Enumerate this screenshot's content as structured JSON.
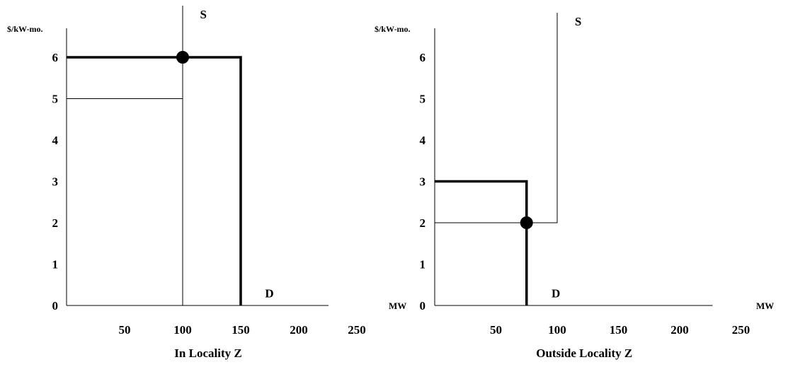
{
  "chart_data": [
    {
      "type": "line",
      "title": "In Locality Z",
      "ylabel": "$/kW-mo.",
      "xlabel": "",
      "x_ticks": [
        50,
        100,
        150,
        200,
        250
      ],
      "y_ticks": [
        0,
        1,
        2,
        3,
        4,
        5,
        6
      ],
      "xlim": [
        0,
        250
      ],
      "ylim": [
        0,
        6
      ],
      "grid": false,
      "series": [
        {
          "name": "S",
          "points": [
            [
              100,
              0
            ],
            [
              100,
              7
            ]
          ],
          "line": "thin",
          "label_at": [
            104,
            6.8
          ]
        },
        {
          "name": "D",
          "points": [
            [
              0,
              6
            ],
            [
              150,
              6
            ],
            [
              150,
              0
            ]
          ],
          "line": "thick",
          "label_at": [
            160,
            0.2
          ]
        },
        {
          "name": "",
          "points": [
            [
              0,
              5
            ],
            [
              100,
              5
            ]
          ],
          "line": "thin"
        },
        {
          "name": "",
          "points": [
            [
              100,
              0
            ],
            [
              100,
              5
            ]
          ],
          "line": "dashed"
        }
      ],
      "markers": [
        [
          100,
          6
        ]
      ]
    },
    {
      "type": "line",
      "title": "Outside Locality Z",
      "ylabel": "$/kW-mo.",
      "xlabel": "MW",
      "x_ticks": [
        50,
        100,
        150,
        200,
        250
      ],
      "y_ticks": [
        0,
        1,
        2,
        3,
        4,
        5,
        6
      ],
      "xlim": [
        0,
        250
      ],
      "ylim": [
        0,
        6
      ],
      "grid": false,
      "series": [
        {
          "name": "S",
          "points": [
            [
              0,
              2
            ],
            [
              100,
              2
            ],
            [
              100,
              7
            ]
          ],
          "line": "thin",
          "label_at": [
            104,
            6.8
          ]
        },
        {
          "name": "D",
          "points": [
            [
              0,
              3
            ],
            [
              75,
              3
            ],
            [
              75,
              0
            ]
          ],
          "line": "thick",
          "label_at": [
            85,
            0.2
          ]
        }
      ],
      "markers": [
        [
          75,
          2
        ]
      ]
    }
  ],
  "extra_labels": {
    "left_mw": "MW"
  }
}
